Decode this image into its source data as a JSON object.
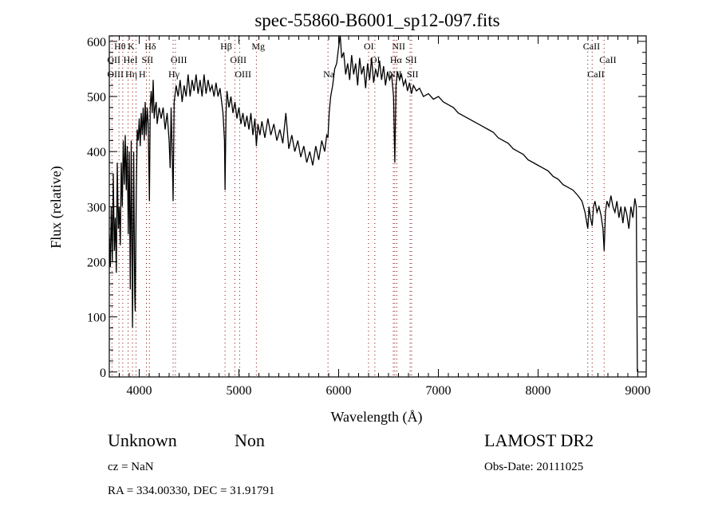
{
  "chart_data": {
    "type": "line",
    "title": "spec-55860-B6001_sp12-097.fits",
    "xlabel": "Wavelength (Å)",
    "ylabel": "Flux (relative)",
    "xlim": [
      3700,
      9084
    ],
    "ylim": [
      -9,
      610
    ],
    "xticks": [
      4000,
      5000,
      6000,
      7000,
      8000,
      9000
    ],
    "yticks": [
      0,
      100,
      200,
      300,
      400,
      500,
      600
    ],
    "grid": false,
    "series": [
      {
        "name": "spectrum",
        "color": "#000000",
        "points": [
          [
            3700,
            250
          ],
          [
            3710,
            190
          ],
          [
            3720,
            300
          ],
          [
            3730,
            200
          ],
          [
            3740,
            360
          ],
          [
            3750,
            220
          ],
          [
            3760,
            280
          ],
          [
            3770,
            180
          ],
          [
            3780,
            380
          ],
          [
            3790,
            260
          ],
          [
            3800,
            300
          ],
          [
            3810,
            230
          ],
          [
            3820,
            380
          ],
          [
            3830,
            300
          ],
          [
            3840,
            420
          ],
          [
            3850,
            340
          ],
          [
            3860,
            430
          ],
          [
            3870,
            330
          ],
          [
            3880,
            410
          ],
          [
            3890,
            250
          ],
          [
            3900,
            400
          ],
          [
            3910,
            150
          ],
          [
            3920,
            420
          ],
          [
            3933,
            80
          ],
          [
            3945,
            400
          ],
          [
            3955,
            140
          ],
          [
            3960,
            110
          ],
          [
            3970,
            320
          ],
          [
            3980,
            440
          ],
          [
            3990,
            420
          ],
          [
            4000,
            460
          ],
          [
            4010,
            410
          ],
          [
            4020,
            470
          ],
          [
            4030,
            430
          ],
          [
            4040,
            480
          ],
          [
            4050,
            420
          ],
          [
            4060,
            490
          ],
          [
            4070,
            430
          ],
          [
            4080,
            480
          ],
          [
            4090,
            450
          ],
          [
            4102,
            310
          ],
          [
            4110,
            480
          ],
          [
            4120,
            510
          ],
          [
            4130,
            470
          ],
          [
            4140,
            530
          ],
          [
            4150,
            460
          ],
          [
            4160,
            480
          ],
          [
            4170,
            490
          ],
          [
            4180,
            450
          ],
          [
            4200,
            480
          ],
          [
            4220,
            460
          ],
          [
            4240,
            480
          ],
          [
            4260,
            440
          ],
          [
            4280,
            470
          ],
          [
            4300,
            420
          ],
          [
            4310,
            370
          ],
          [
            4320,
            480
          ],
          [
            4330,
            400
          ],
          [
            4340,
            310
          ],
          [
            4350,
            490
          ],
          [
            4370,
            520
          ],
          [
            4390,
            500
          ],
          [
            4410,
            530
          ],
          [
            4430,
            490
          ],
          [
            4450,
            520
          ],
          [
            4470,
            500
          ],
          [
            4490,
            540
          ],
          [
            4510,
            500
          ],
          [
            4530,
            530
          ],
          [
            4550,
            510
          ],
          [
            4570,
            540
          ],
          [
            4590,
            505
          ],
          [
            4610,
            530
          ],
          [
            4630,
            500
          ],
          [
            4650,
            540
          ],
          [
            4670,
            505
          ],
          [
            4690,
            530
          ],
          [
            4710,
            510
          ],
          [
            4730,
            520
          ],
          [
            4750,
            500
          ],
          [
            4770,
            525
          ],
          [
            4790,
            500
          ],
          [
            4810,
            515
          ],
          [
            4840,
            470
          ],
          [
            4855,
            420
          ],
          [
            4861,
            330
          ],
          [
            4870,
            470
          ],
          [
            4880,
            510
          ],
          [
            4900,
            480
          ],
          [
            4920,
            500
          ],
          [
            4940,
            470
          ],
          [
            4960,
            490
          ],
          [
            4980,
            460
          ],
          [
            5000,
            480
          ],
          [
            5020,
            450
          ],
          [
            5040,
            470
          ],
          [
            5060,
            445
          ],
          [
            5080,
            465
          ],
          [
            5100,
            440
          ],
          [
            5120,
            470
          ],
          [
            5140,
            430
          ],
          [
            5160,
            460
          ],
          [
            5175,
            410
          ],
          [
            5190,
            450
          ],
          [
            5210,
            430
          ],
          [
            5230,
            455
          ],
          [
            5260,
            425
          ],
          [
            5290,
            460
          ],
          [
            5320,
            430
          ],
          [
            5350,
            450
          ],
          [
            5380,
            420
          ],
          [
            5410,
            440
          ],
          [
            5440,
            415
          ],
          [
            5470,
            470
          ],
          [
            5500,
            405
          ],
          [
            5530,
            430
          ],
          [
            5560,
            400
          ],
          [
            5590,
            420
          ],
          [
            5620,
            390
          ],
          [
            5650,
            410
          ],
          [
            5680,
            380
          ],
          [
            5710,
            400
          ],
          [
            5740,
            375
          ],
          [
            5770,
            410
          ],
          [
            5800,
            385
          ],
          [
            5830,
            420
          ],
          [
            5860,
            400
          ],
          [
            5880,
            430
          ],
          [
            5893,
            425
          ],
          [
            5905,
            470
          ],
          [
            5920,
            500
          ],
          [
            5940,
            520
          ],
          [
            5960,
            550
          ],
          [
            5980,
            560
          ],
          [
            6000,
            590
          ],
          [
            6015,
            612
          ],
          [
            6030,
            570
          ],
          [
            6050,
            580
          ],
          [
            6070,
            540
          ],
          [
            6090,
            560
          ],
          [
            6110,
            530
          ],
          [
            6130,
            575
          ],
          [
            6150,
            540
          ],
          [
            6170,
            560
          ],
          [
            6190,
            520
          ],
          [
            6210,
            570
          ],
          [
            6230,
            540
          ],
          [
            6250,
            555
          ],
          [
            6270,
            515
          ],
          [
            6290,
            560
          ],
          [
            6310,
            530
          ],
          [
            6330,
            570
          ],
          [
            6350,
            525
          ],
          [
            6370,
            550
          ],
          [
            6390,
            535
          ],
          [
            6410,
            565
          ],
          [
            6430,
            530
          ],
          [
            6450,
            555
          ],
          [
            6470,
            520
          ],
          [
            6490,
            545
          ],
          [
            6510,
            530
          ],
          [
            6530,
            540
          ],
          [
            6550,
            500
          ],
          [
            6563,
            380
          ],
          [
            6575,
            520
          ],
          [
            6590,
            545
          ],
          [
            6610,
            530
          ],
          [
            6630,
            540
          ],
          [
            6650,
            520
          ],
          [
            6670,
            530
          ],
          [
            6690,
            510
          ],
          [
            6710,
            525
          ],
          [
            6730,
            505
          ],
          [
            6750,
            520
          ],
          [
            6780,
            510
          ],
          [
            6810,
            515
          ],
          [
            6850,
            500
          ],
          [
            6900,
            505
          ],
          [
            6950,
            495
          ],
          [
            7000,
            500
          ],
          [
            7050,
            490
          ],
          [
            7100,
            485
          ],
          [
            7150,
            480
          ],
          [
            7200,
            470
          ],
          [
            7250,
            465
          ],
          [
            7300,
            460
          ],
          [
            7350,
            455
          ],
          [
            7400,
            450
          ],
          [
            7450,
            445
          ],
          [
            7500,
            440
          ],
          [
            7550,
            435
          ],
          [
            7600,
            425
          ],
          [
            7650,
            420
          ],
          [
            7700,
            415
          ],
          [
            7750,
            405
          ],
          [
            7800,
            400
          ],
          [
            7850,
            395
          ],
          [
            7900,
            385
          ],
          [
            7950,
            380
          ],
          [
            8000,
            375
          ],
          [
            8050,
            370
          ],
          [
            8100,
            365
          ],
          [
            8150,
            355
          ],
          [
            8200,
            350
          ],
          [
            8250,
            340
          ],
          [
            8300,
            335
          ],
          [
            8350,
            330
          ],
          [
            8400,
            320
          ],
          [
            8440,
            310
          ],
          [
            8470,
            290
          ],
          [
            8498,
            260
          ],
          [
            8510,
            300
          ],
          [
            8525,
            280
          ],
          [
            8542,
            265
          ],
          [
            8555,
            300
          ],
          [
            8570,
            310
          ],
          [
            8590,
            290
          ],
          [
            8610,
            300
          ],
          [
            8630,
            285
          ],
          [
            8650,
            260
          ],
          [
            8662,
            220
          ],
          [
            8675,
            290
          ],
          [
            8690,
            310
          ],
          [
            8710,
            300
          ],
          [
            8730,
            320
          ],
          [
            8750,
            300
          ],
          [
            8770,
            290
          ],
          [
            8790,
            310
          ],
          [
            8810,
            280
          ],
          [
            8830,
            300
          ],
          [
            8850,
            270
          ],
          [
            8870,
            300
          ],
          [
            8890,
            285
          ],
          [
            8910,
            260
          ],
          [
            8930,
            300
          ],
          [
            8950,
            280
          ],
          [
            8970,
            315
          ],
          [
            8985,
            300
          ],
          [
            8995,
            0
          ]
        ]
      }
    ],
    "annotations": {
      "line_color": "#8b0000",
      "lines": [
        {
          "label": "Hθ",
          "wavelength": 3797,
          "row": 1
        },
        {
          "label": "K",
          "wavelength": 3933,
          "row": 1
        },
        {
          "label": "Hδ",
          "wavelength": 4102,
          "row": 1
        },
        {
          "label": "Hβ",
          "wavelength": 4861,
          "row": 1
        },
        {
          "label": "Mg",
          "wavelength": 5175,
          "row": 1
        },
        {
          "label": "OI",
          "wavelength": 6300,
          "row": 1
        },
        {
          "label": "NII",
          "wavelength": 6583,
          "row": 1
        },
        {
          "label": "CaII",
          "wavelength": 8498,
          "row": 1
        },
        {
          "label": "OII",
          "wavelength": 3727,
          "row": 2
        },
        {
          "label": "HeI",
          "wavelength": 3889,
          "row": 2
        },
        {
          "label": "SII",
          "wavelength": 4072,
          "row": 2
        },
        {
          "label": "OIII",
          "wavelength": 4363,
          "row": 2
        },
        {
          "label": "OIII",
          "wavelength": 4959,
          "row": 2
        },
        {
          "label": "OI",
          "wavelength": 6363,
          "row": 2
        },
        {
          "label": "Hα",
          "wavelength": 6563,
          "row": 2
        },
        {
          "label": "SII",
          "wavelength": 6716,
          "row": 2
        },
        {
          "label": "CaII",
          "wavelength": 8662,
          "row": 2
        },
        {
          "label": "OIII",
          "wavelength": 3727,
          "row": 3
        },
        {
          "label": "Hη",
          "wavelength": 3835,
          "row": 3
        },
        {
          "label": "H",
          "wavelength": 3968,
          "row": 3
        },
        {
          "label": "Hγ",
          "wavelength": 4340,
          "row": 3
        },
        {
          "label": "OIII",
          "wavelength": 5007,
          "row": 3
        },
        {
          "label": "Na",
          "wavelength": 5893,
          "row": 3
        },
        {
          "label": "NII",
          "wavelength": 6548,
          "row": 3
        },
        {
          "label": "SII",
          "wavelength": 6731,
          "row": 3
        },
        {
          "label": "CaII",
          "wavelength": 8542,
          "row": 3
        }
      ]
    }
  },
  "info": {
    "class": "Unknown",
    "subclass": "Non",
    "cz": "cz = NaN",
    "coords": "RA = 334.00330, DEC =  31.91791",
    "survey": "LAMOST DR2",
    "obs_date": "Obs-Date: 20111025"
  }
}
